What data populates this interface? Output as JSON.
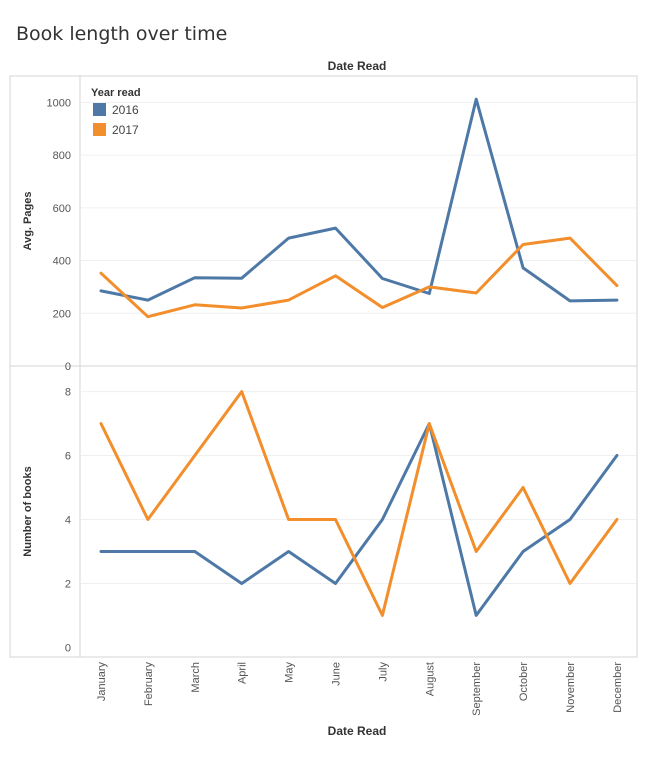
{
  "chart_data": {
    "type": "line",
    "title": "Book length over time",
    "column_header": "Date Read",
    "xlabel": "Date Read",
    "categories": [
      "January",
      "February",
      "March",
      "April",
      "May",
      "June",
      "July",
      "August",
      "September",
      "October",
      "November",
      "December"
    ],
    "legend": {
      "title": "Year read",
      "entries": [
        {
          "name": "2016",
          "color": "#4e79a7"
        },
        {
          "name": "2017",
          "color": "#f28e2b"
        }
      ],
      "placement": "top-left"
    },
    "panels": [
      {
        "ylabel": "Avg. Pages",
        "ylim": [
          0,
          1100
        ],
        "yticks": [
          "0",
          "200",
          "400",
          "600",
          "800",
          "1000"
        ],
        "series": [
          {
            "name": "2016",
            "color": "#4e79a7",
            "values": [
              285,
              250,
              335,
              333,
              485,
              523,
              332,
              275,
              1012,
              372,
              247,
              250
            ]
          },
          {
            "name": "2017",
            "color": "#f28e2b",
            "values": [
              352,
              187,
              232,
              220,
              250,
              342,
              222,
              300,
              277,
              461,
              485,
              305
            ]
          }
        ]
      },
      {
        "ylabel": "Number of books",
        "ylim": [
          -0.3,
          8.8
        ],
        "yticks": [
          "0",
          "2",
          "4",
          "6",
          "8"
        ],
        "series": [
          {
            "name": "2016",
            "color": "#4e79a7",
            "values": [
              3,
              3,
              3,
              2,
              3,
              2,
              4,
              7,
              1,
              3,
              4,
              6
            ]
          },
          {
            "name": "2017",
            "color": "#f28e2b",
            "values": [
              7,
              4,
              6,
              8,
              4,
              4,
              1,
              7,
              3,
              5,
              2,
              4
            ]
          }
        ]
      }
    ]
  }
}
